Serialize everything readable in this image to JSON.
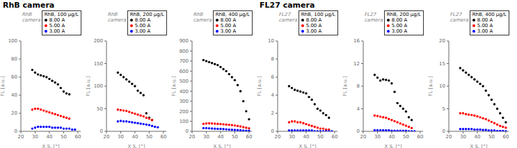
{
  "chart_data": [
    {
      "type": "scatter",
      "title": "RhB, 100 µg/L",
      "subtitle": "RhB camera",
      "annotations": [
        "RhB\ncamera"
      ],
      "xlabel": "X S. [°]",
      "ylabel": "FL [a.u.]",
      "xlim": [
        20,
        62
      ],
      "xticks": [
        20,
        30,
        40,
        50,
        60
      ],
      "ylim": [
        0,
        100
      ],
      "yticks": [
        0,
        20,
        40,
        60,
        80,
        100
      ],
      "legend": "upper right",
      "series": [
        {
          "name": "8.00 A",
          "color": "black",
          "x": [
            28,
            30,
            32,
            34,
            36,
            38,
            40,
            42,
            44,
            46,
            48,
            50,
            52,
            54
          ],
          "values": [
            68,
            65,
            63,
            62,
            61,
            60,
            58,
            56,
            54,
            52,
            48,
            44,
            42,
            41
          ]
        },
        {
          "name": "5.00 A",
          "color": "red",
          "x": [
            28,
            30,
            32,
            34,
            36,
            38,
            40,
            42,
            44,
            46,
            48,
            50,
            52,
            54
          ],
          "values": [
            24,
            25,
            25,
            24,
            23,
            22,
            21,
            20,
            19,
            18,
            17,
            16,
            15,
            14
          ]
        },
        {
          "name": "3.00 A",
          "color": "blue",
          "x": [
            28,
            30,
            32,
            34,
            36,
            38,
            40,
            42,
            44,
            46,
            48,
            50,
            52,
            54,
            56,
            58
          ],
          "values": [
            3,
            4,
            5,
            5,
            5,
            5,
            5,
            4,
            4,
            4,
            4,
            3,
            3,
            3,
            2,
            2
          ]
        }
      ]
    },
    {
      "type": "scatter",
      "title": "RhB, 200 µg/L",
      "annotations": [
        "RhB\ncamera"
      ],
      "xlabel": "X S. [°]",
      "ylabel": "FL [a.u.]",
      "xlim": [
        20,
        62
      ],
      "xticks": [
        20,
        30,
        40,
        50,
        60
      ],
      "ylim": [
        0,
        200
      ],
      "yticks": [
        0,
        50,
        100,
        150,
        200
      ],
      "legend": "upper right",
      "series": [
        {
          "name": "8.00 A",
          "color": "black",
          "x": [
            28,
            30,
            32,
            34,
            36,
            38,
            40,
            42,
            44,
            46,
            48,
            50,
            52
          ],
          "values": [
            130,
            125,
            120,
            115,
            110,
            105,
            100,
            90,
            85,
            80,
            40,
            30,
            25
          ]
        },
        {
          "name": "5.00 A",
          "color": "red",
          "x": [
            28,
            30,
            32,
            34,
            36,
            38,
            40,
            42,
            44,
            46,
            48,
            50,
            52
          ],
          "values": [
            48,
            47,
            46,
            45,
            43,
            41,
            39,
            37,
            35,
            33,
            30,
            28,
            25
          ]
        },
        {
          "name": "3.00 A",
          "color": "blue",
          "x": [
            28,
            30,
            32,
            34,
            36,
            38,
            40,
            42,
            44,
            46,
            48,
            50,
            52,
            54,
            56
          ],
          "values": [
            22,
            23,
            22,
            22,
            21,
            20,
            19,
            18,
            17,
            16,
            15,
            14,
            12,
            10,
            9
          ]
        }
      ]
    },
    {
      "type": "scatter",
      "title": "RhB, 400 µg/L",
      "annotations": [
        "RhB\ncamera"
      ],
      "xlabel": "X S. [°]",
      "ylabel": "FL [a.u.]",
      "xlim": [
        20,
        62
      ],
      "xticks": [
        20,
        30,
        40,
        50,
        60
      ],
      "ylim": [
        0,
        900
      ],
      "yticks": [
        0,
        100,
        200,
        300,
        400,
        500,
        600,
        700,
        800,
        900
      ],
      "legend": "upper right",
      "series": [
        {
          "name": "8.00 A",
          "color": "black",
          "x": [
            28,
            30,
            32,
            34,
            36,
            38,
            40,
            42,
            44,
            46,
            48,
            50,
            52,
            54,
            56,
            58,
            60
          ],
          "values": [
            710,
            700,
            690,
            680,
            670,
            660,
            640,
            620,
            600,
            570,
            540,
            510,
            460,
            400,
            300,
            200,
            120
          ]
        },
        {
          "name": "5.00 A",
          "color": "red",
          "x": [
            28,
            30,
            32,
            34,
            36,
            38,
            40,
            42,
            44,
            46,
            48,
            50,
            52,
            54,
            56,
            58,
            60
          ],
          "values": [
            75,
            78,
            80,
            78,
            76,
            74,
            72,
            70,
            68,
            65,
            62,
            58,
            54,
            48,
            42,
            36,
            30
          ]
        },
        {
          "name": "3.00 A",
          "color": "blue",
          "x": [
            28,
            30,
            32,
            34,
            36,
            38,
            40,
            42,
            44,
            46,
            48,
            50,
            52,
            54,
            56,
            58,
            60
          ],
          "values": [
            32,
            32,
            30,
            28,
            26,
            25,
            24,
            22,
            20,
            18,
            16,
            14,
            12,
            10,
            8,
            6,
            5
          ]
        }
      ]
    },
    {
      "type": "scatter",
      "title": "RhB, 100 µg/L",
      "subtitle": "FL27 camera",
      "annotations": [
        "FL27\ncamera"
      ],
      "xlabel": "X S. [°]",
      "ylabel": "FL [a.u.]",
      "xlim": [
        20,
        62
      ],
      "xticks": [
        20,
        30,
        40,
        50,
        60
      ],
      "ylim": [
        0,
        10
      ],
      "yticks": [
        0,
        2,
        4,
        6,
        8,
        10
      ],
      "legend": "upper right",
      "series": [
        {
          "name": "8.00 A",
          "color": "black",
          "x": [
            28,
            30,
            32,
            34,
            36,
            38,
            40,
            42,
            44,
            46,
            48,
            50,
            52,
            54,
            56
          ],
          "values": [
            5.0,
            4.8,
            4.6,
            4.5,
            4.4,
            4.3,
            4.2,
            3.8,
            3.5,
            3.0,
            2.5,
            2.3,
            2.0,
            1.8,
            1.5
          ]
        },
        {
          "name": "5.00 A",
          "color": "red",
          "x": [
            28,
            30,
            32,
            34,
            36,
            38,
            40,
            42,
            44,
            46,
            48,
            50,
            52,
            54,
            56
          ],
          "values": [
            1.0,
            1.1,
            1.1,
            1.0,
            1.0,
            0.9,
            0.8,
            0.7,
            0.6,
            0.5,
            0.4,
            0.3,
            0.3,
            0.2,
            0.2
          ]
        },
        {
          "name": "3.00 A",
          "color": "blue",
          "x": [
            28,
            30,
            32,
            34,
            36,
            38,
            40,
            42,
            44,
            46,
            48,
            50,
            52,
            54,
            56,
            58
          ],
          "values": [
            0.1,
            0.1,
            0.1,
            0.1,
            0.1,
            0.1,
            0.1,
            0.1,
            0.1,
            0.0,
            0.0,
            0.0,
            0.0,
            0.0,
            0.0,
            0.0
          ]
        }
      ]
    },
    {
      "type": "scatter",
      "title": "RhB, 200 µg/L",
      "annotations": [
        "FL27\ncamera"
      ],
      "xlabel": "X S. [°]",
      "ylabel": "FL [a.u.]",
      "xlim": [
        20,
        62
      ],
      "xticks": [
        20,
        30,
        40,
        50,
        60
      ],
      "ylim": [
        0,
        16
      ],
      "yticks": [
        0,
        4,
        8,
        12,
        16
      ],
      "legend": "upper right",
      "series": [
        {
          "name": "8.00 A",
          "color": "black",
          "x": [
            28,
            30,
            32,
            34,
            36,
            38,
            40,
            42,
            44,
            46,
            48,
            50,
            52,
            54
          ],
          "values": [
            10,
            9.5,
            9.0,
            9.2,
            9.1,
            9.0,
            8.5,
            7.0,
            5.0,
            4.5,
            4.0,
            3.5,
            2.5,
            2.0
          ]
        },
        {
          "name": "5.00 A",
          "color": "red",
          "x": [
            28,
            30,
            32,
            34,
            36,
            38,
            40,
            42,
            44,
            46,
            48,
            50,
            52,
            54
          ],
          "values": [
            2.8,
            2.7,
            2.6,
            2.5,
            2.4,
            2.2,
            2.0,
            1.8,
            1.6,
            1.4,
            1.2,
            1.0,
            0.8,
            0.6
          ]
        },
        {
          "name": "3.00 A",
          "color": "blue",
          "x": [
            28,
            30,
            32,
            34,
            36,
            38,
            40,
            42,
            44,
            46,
            48,
            50,
            52,
            54,
            56
          ],
          "values": [
            0.2,
            0.2,
            0.2,
            0.2,
            0.2,
            0.2,
            0.1,
            0.1,
            0.1,
            0.1,
            0.1,
            0.1,
            0.0,
            0.0,
            0.0
          ]
        }
      ]
    },
    {
      "type": "scatter",
      "title": "RhB, 400 µg/L",
      "annotations": [
        "FL27\ncamera"
      ],
      "xlabel": "X S. [°]",
      "ylabel": "FL [a.u.]",
      "xlim": [
        20,
        62
      ],
      "xticks": [
        20,
        30,
        40,
        50,
        60
      ],
      "ylim": [
        0,
        20
      ],
      "yticks": [
        0,
        5,
        10,
        15,
        20
      ],
      "legend": "upper right",
      "series": [
        {
          "name": "8.00 A",
          "color": "black",
          "x": [
            28,
            30,
            32,
            34,
            36,
            38,
            40,
            42,
            44,
            46,
            48,
            50,
            52,
            54,
            56,
            58,
            60
          ],
          "values": [
            14,
            13.5,
            13,
            12.5,
            12,
            11.5,
            11,
            10.5,
            10,
            9,
            8,
            7,
            6,
            5,
            4,
            3,
            2
          ]
        },
        {
          "name": "5.00 A",
          "color": "red",
          "x": [
            28,
            30,
            32,
            34,
            36,
            38,
            40,
            42,
            44,
            46,
            48,
            50,
            52,
            54,
            56,
            58,
            60
          ],
          "values": [
            4.0,
            4.0,
            3.8,
            3.7,
            3.6,
            3.5,
            3.3,
            3.1,
            2.9,
            2.7,
            2.4,
            2.1,
            1.8,
            1.5,
            1.2,
            1.0,
            0.8
          ]
        },
        {
          "name": "3.00 A",
          "color": "blue",
          "x": [
            28,
            30,
            32,
            34,
            36,
            38,
            40,
            42,
            44,
            46,
            48,
            50,
            52,
            54,
            56,
            58,
            60
          ],
          "values": [
            0.5,
            0.5,
            0.5,
            0.5,
            0.5,
            0.4,
            0.4,
            0.4,
            0.3,
            0.3,
            0.2,
            0.2,
            0.2,
            0.1,
            0.1,
            0.1,
            0.0
          ]
        }
      ]
    }
  ]
}
